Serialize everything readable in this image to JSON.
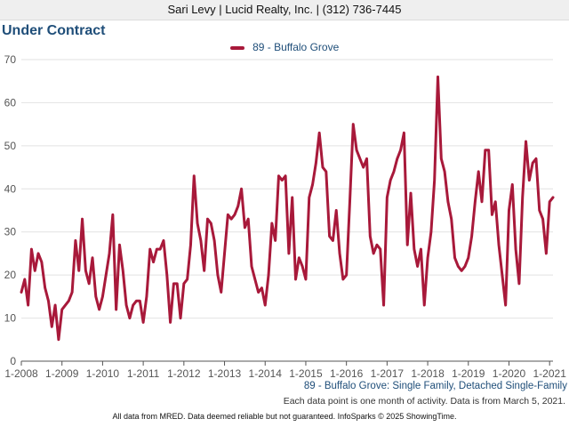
{
  "header": {
    "agent_line": "Sari Levy | Lucid Realty, Inc. | (312) 736-7445"
  },
  "chart_title": "Under Contract",
  "subtitle": "89 - Buffalo Grove: Single Family, Detached Single-Family",
  "note": "Each data point is one month of activity. Data is from March 5, 2021.",
  "footer": "All data from MRED. Data deemed reliable but not guaranteed. InfoSparks © 2025 ShowingTime.",
  "colors": {
    "series": "#a8193a",
    "grid": "#e2e2e2",
    "axis": "#555555",
    "title": "#1f4e79"
  },
  "chart_data": {
    "type": "line",
    "title": "Under Contract",
    "xlabel": "",
    "ylabel": "",
    "x_start": "2008-01",
    "xlim": [
      "2008-01",
      "2021-02"
    ],
    "ylim": [
      0,
      70
    ],
    "y_ticks": [
      0,
      10,
      20,
      30,
      40,
      50,
      60,
      70
    ],
    "x_tick_labels": [
      "1-2008",
      "1-2009",
      "1-2010",
      "1-2011",
      "1-2012",
      "1-2013",
      "1-2014",
      "1-2015",
      "1-2016",
      "1-2017",
      "1-2018",
      "1-2019",
      "1-2020",
      "1-2021"
    ],
    "grid": true,
    "legend_position": "top-center",
    "series": [
      {
        "name": "89 - Buffalo Grove",
        "values": [
          16,
          19,
          13,
          26,
          21,
          25,
          23,
          17,
          14,
          8,
          13,
          5,
          12,
          13,
          14,
          16,
          28,
          21,
          33,
          21,
          18,
          24,
          15,
          12,
          15,
          20,
          25,
          34,
          12,
          27,
          21,
          13,
          10,
          13,
          14,
          14,
          9,
          15,
          26,
          23,
          26,
          26,
          28,
          20,
          9,
          18,
          18,
          10,
          18,
          19,
          27,
          43,
          32,
          28,
          21,
          33,
          32,
          28,
          20,
          16,
          25,
          34,
          33,
          34,
          36,
          40,
          31,
          33,
          22,
          19,
          16,
          17,
          13,
          20,
          32,
          28,
          43,
          42,
          43,
          25,
          38,
          19,
          24,
          22,
          19,
          38,
          41,
          46,
          53,
          45,
          44,
          29,
          28,
          35,
          25,
          19,
          20,
          37,
          55,
          49,
          47,
          45,
          47,
          29,
          25,
          27,
          26,
          13,
          38,
          42,
          44,
          47,
          49,
          53,
          27,
          39,
          26,
          22,
          26,
          13,
          24,
          30,
          42,
          66,
          47,
          44,
          37,
          33,
          24,
          22,
          21,
          22,
          24,
          29,
          37,
          44,
          37,
          49,
          49,
          34,
          37,
          27,
          20,
          13,
          35,
          41,
          26,
          18,
          38,
          51,
          42,
          46,
          47,
          35,
          33,
          25,
          37,
          38
        ]
      }
    ]
  }
}
